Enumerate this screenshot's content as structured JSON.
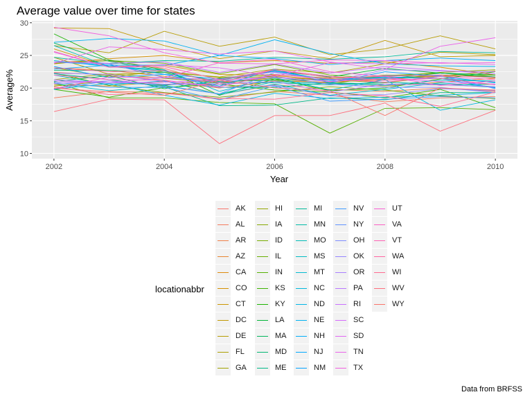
{
  "chart_data": {
    "type": "line",
    "title": "Average value over time for states",
    "caption": "Data from BRFSS",
    "xlabel": "Year",
    "ylabel": "Average%",
    "x": [
      2002,
      2003,
      2004,
      2005,
      2006,
      2007,
      2008,
      2009,
      2010
    ],
    "xlim": [
      2001.6,
      2010.4
    ],
    "ylim": [
      9.2,
      30.3
    ],
    "xticks": [
      2002,
      2004,
      2006,
      2008,
      2010
    ],
    "yticks": [
      10,
      15,
      20,
      25,
      30
    ],
    "grid": true,
    "legend_title": "locationabbr",
    "legend_placement": "bottom",
    "series": [
      {
        "name": "AK",
        "color": "#F8766D",
        "values": [
          24.0,
          24.2,
          23.0,
          20.6,
          22.0,
          21.0,
          21.2,
          22.0,
          21.6
        ]
      },
      {
        "name": "AL",
        "color": "#F47A5C",
        "values": [
          18.5,
          19.5,
          19.3,
          18.3,
          19.5,
          18.9,
          17.9,
          18.5,
          18.7
        ]
      },
      {
        "name": "AR",
        "color": "#EE7E47",
        "values": [
          22.4,
          22.0,
          21.2,
          19.0,
          20.5,
          19.8,
          19.5,
          20.0,
          19.5
        ]
      },
      {
        "name": "AZ",
        "color": "#E7842F",
        "values": [
          23.1,
          22.7,
          21.8,
          20.9,
          21.4,
          20.8,
          20.3,
          20.9,
          21.5
        ]
      },
      {
        "name": "CA",
        "color": "#DE8A0B",
        "values": [
          20.5,
          20.3,
          21.0,
          20.0,
          21.1,
          20.9,
          21.4,
          21.8,
          22.0
        ]
      },
      {
        "name": "CO",
        "color": "#D58F00",
        "values": [
          23.7,
          24.5,
          25.0,
          23.9,
          24.2,
          23.8,
          24.0,
          23.2,
          22.0
        ]
      },
      {
        "name": "CT",
        "color": "#CB9400",
        "values": [
          26.0,
          23.3,
          23.5,
          22.1,
          21.9,
          21.2,
          22.0,
          21.8,
          22.6
        ]
      },
      {
        "name": "DC",
        "color": "#C19800",
        "values": [
          29.2,
          29.1,
          26.5,
          24.5,
          25.7,
          24.5,
          27.3,
          24.8,
          25.0
        ]
      },
      {
        "name": "DE",
        "color": "#B69C00",
        "values": [
          26.5,
          25.4,
          28.7,
          26.4,
          27.8,
          25.1,
          26.0,
          28.0,
          26.0
        ]
      },
      {
        "name": "FL",
        "color": "#AB9F00",
        "values": [
          24.7,
          22.1,
          22.4,
          21.7,
          22.9,
          22.3,
          23.7,
          25.5,
          25.1
        ]
      },
      {
        "name": "GA",
        "color": "#9FA200",
        "values": [
          21.3,
          22.2,
          21.5,
          20.8,
          21.6,
          21.3,
          20.8,
          21.8,
          22.0
        ]
      },
      {
        "name": "HI",
        "color": "#93A600",
        "values": [
          23.1,
          21.7,
          22.6,
          21.6,
          22.1,
          21.5,
          21.7,
          22.4,
          22.8
        ]
      },
      {
        "name": "IA",
        "color": "#86A800",
        "values": [
          20.3,
          21.1,
          20.4,
          21.5,
          21.8,
          20.6,
          21.9,
          22.3,
          21.6
        ]
      },
      {
        "name": "ID",
        "color": "#77AB00",
        "values": [
          22.3,
          20.4,
          19.3,
          18.6,
          19.4,
          20.2,
          19.7,
          18.8,
          18.4
        ]
      },
      {
        "name": "IL",
        "color": "#67AD00",
        "values": [
          23.8,
          24.2,
          23.8,
          22.2,
          23.6,
          22.0,
          21.4,
          22.0,
          21.7
        ]
      },
      {
        "name": "IN",
        "color": "#55AF00",
        "values": [
          20.8,
          18.5,
          18.5,
          17.8,
          17.6,
          13.1,
          16.9,
          17.0,
          16.7
        ]
      },
      {
        "name": "KS",
        "color": "#3DB200",
        "values": [
          19.8,
          18.6,
          20.1,
          20.6,
          19.7,
          19.4,
          18.5,
          19.8,
          17.0
        ]
      },
      {
        "name": "KY",
        "color": "#1AB300",
        "values": [
          28.3,
          24.3,
          22.8,
          18.9,
          21.4,
          19.6,
          20.0,
          21.4,
          22.5
        ]
      },
      {
        "name": "LA",
        "color": "#00B437",
        "values": [
          21.0,
          21.9,
          19.9,
          21.2,
          22.6,
          21.7,
          23.0,
          22.3,
          22.0
        ]
      },
      {
        "name": "MA",
        "color": "#00B55A",
        "values": [
          26.9,
          24.1,
          22.6,
          21.0,
          21.2,
          21.3,
          21.4,
          22.3,
          21.7
        ]
      },
      {
        "name": "MD",
        "color": "#00B672",
        "values": [
          22.7,
          22.7,
          22.4,
          20.1,
          20.1,
          20.8,
          20.6,
          20.5,
          20.6
        ]
      },
      {
        "name": "ME",
        "color": "#00B887",
        "values": [
          22.2,
          21.3,
          20.2,
          17.3,
          17.4,
          18.5,
          18.2,
          19.3,
          19.3
        ]
      },
      {
        "name": "MI",
        "color": "#00B998",
        "values": [
          24.7,
          23.7,
          24.2,
          24.1,
          24.7,
          24.4,
          24.8,
          25.6,
          25.4
        ]
      },
      {
        "name": "MN",
        "color": "#00BAA8",
        "values": [
          21.1,
          20.8,
          20.5,
          20.8,
          20.8,
          20.5,
          20.9,
          20.6,
          20.1
        ]
      },
      {
        "name": "MO",
        "color": "#00BBB6",
        "values": [
          26.5,
          23.3,
          22.6,
          20.9,
          22.7,
          21.2,
          21.6,
          21.5,
          20.9
        ]
      },
      {
        "name": "MS",
        "color": "#00BBC3",
        "values": [
          20.7,
          19.6,
          20.4,
          19.1,
          21.0,
          20.7,
          20.4,
          21.2,
          21.1
        ]
      },
      {
        "name": "MT",
        "color": "#00BAD0",
        "values": [
          22.0,
          20.5,
          21.1,
          19.0,
          20.6,
          18.9,
          19.8,
          20.8,
          20.2
        ]
      },
      {
        "name": "NC",
        "color": "#00B8DC",
        "values": [
          24.2,
          23.3,
          22.8,
          19.5,
          21.6,
          19.7,
          21.3,
          16.6,
          18.2
        ]
      },
      {
        "name": "ND",
        "color": "#00B5E7",
        "values": [
          19.8,
          20.7,
          18.9,
          17.4,
          19.2,
          18.4,
          18.6,
          18.9,
          19.3
        ]
      },
      {
        "name": "NE",
        "color": "#00B2F1",
        "values": [
          27.0,
          27.6,
          27.2,
          25.0,
          27.4,
          25.3,
          23.7,
          23.4,
          23.3
        ]
      },
      {
        "name": "NH",
        "color": "#00ADFA",
        "values": [
          24.0,
          23.5,
          23.5,
          25.0,
          24.5,
          23.6,
          24.2,
          24.6,
          24.2
        ]
      },
      {
        "name": "NJ",
        "color": "#00A8FF",
        "values": [
          23.3,
          21.6,
          22.1,
          21.4,
          22.6,
          21.2,
          21.7,
          21.5,
          20.0
        ]
      },
      {
        "name": "NM",
        "color": "#02A3FF",
        "values": [
          22.9,
          23.5,
          22.1,
          20.3,
          22.9,
          20.8,
          22.5,
          21.8,
          20.8
        ]
      },
      {
        "name": "NV",
        "color": "#3E9BFF",
        "values": [
          20.9,
          20.1,
          20.1,
          18.2,
          20.3,
          18.0,
          18.3,
          18.7,
          18.5
        ]
      },
      {
        "name": "NY",
        "color": "#6193FF",
        "values": [
          19.9,
          21.1,
          20.3,
          19.1,
          22.4,
          21.3,
          21.9,
          21.9,
          19.9
        ]
      },
      {
        "name": "OH",
        "color": "#7D8CFF",
        "values": [
          24.0,
          23.7,
          21.6,
          20.9,
          21.7,
          20.6,
          20.1,
          20.1,
          19.3
        ]
      },
      {
        "name": "OK",
        "color": "#9485FF",
        "values": [
          22.3,
          22.1,
          21.0,
          20.1,
          20.4,
          18.8,
          19.0,
          19.9,
          19.6
        ]
      },
      {
        "name": "OR",
        "color": "#A97EFF",
        "values": [
          21.3,
          20.8,
          21.6,
          21.3,
          22.5,
          21.0,
          22.8,
          22.6,
          22.5
        ]
      },
      {
        "name": "PA",
        "color": "#BA77FF",
        "values": [
          20.7,
          21.1,
          20.6,
          20.6,
          21.0,
          19.4,
          20.6,
          20.5,
          20.2
        ]
      },
      {
        "name": "RI",
        "color": "#C970FF",
        "values": [
          24.0,
          23.8,
          24.0,
          22.4,
          23.7,
          22.3,
          23.3,
          22.7,
          22.2
        ]
      },
      {
        "name": "SC",
        "color": "#D66AFC",
        "values": [
          21.1,
          20.8,
          20.9,
          21.2,
          21.7,
          21.0,
          21.5,
          21.0,
          20.6
        ]
      },
      {
        "name": "SD",
        "color": "#E165F4",
        "values": [
          25.5,
          23.2,
          23.6,
          23.1,
          21.8,
          23.9,
          23.7,
          23.9,
          23.6
        ]
      },
      {
        "name": "TN",
        "color": "#EA62EA",
        "values": [
          23.8,
          26.3,
          25.9,
          25.2,
          25.7,
          24.0,
          22.9,
          26.4,
          27.7
        ]
      },
      {
        "name": "TX",
        "color": "#F15FDF",
        "values": [
          29.3,
          28.0,
          25.4,
          23.8,
          23.7,
          24.3,
          24.2,
          23.8,
          23.9
        ]
      },
      {
        "name": "UT",
        "color": "#F75FD2",
        "values": [
          19.9,
          21.7,
          21.6,
          23.9,
          24.4,
          22.5,
          21.8,
          20.4,
          21.1
        ]
      },
      {
        "name": "VA",
        "color": "#FB60C3",
        "values": [
          22.0,
          21.3,
          21.2,
          20.2,
          22.1,
          21.4,
          20.9,
          21.8,
          21.3
        ]
      },
      {
        "name": "VT",
        "color": "#FE62B3",
        "values": [
          25.6,
          23.2,
          23.3,
          21.3,
          22.8,
          21.8,
          21.2,
          21.5,
          20.5
        ]
      },
      {
        "name": "WA",
        "color": "#FF65A2",
        "values": [
          23.1,
          22.5,
          22.7,
          20.8,
          22.8,
          21.6,
          21.8,
          22.0,
          21.6
        ]
      },
      {
        "name": "WI",
        "color": "#FF6990",
        "values": [
          20.2,
          19.0,
          19.2,
          18.4,
          18.3,
          19.3,
          18.8,
          17.2,
          19.4
        ]
      },
      {
        "name": "WV",
        "color": "#FD6E7D",
        "values": [
          16.4,
          18.3,
          18.2,
          11.5,
          15.8,
          15.8,
          17.7,
          13.4,
          16.6
        ]
      },
      {
        "name": "WY",
        "color": "#FA7369",
        "values": [
          20.0,
          19.4,
          18.9,
          21.2,
          20.0,
          19.6,
          15.8,
          20.0,
          19.7
        ]
      }
    ]
  }
}
